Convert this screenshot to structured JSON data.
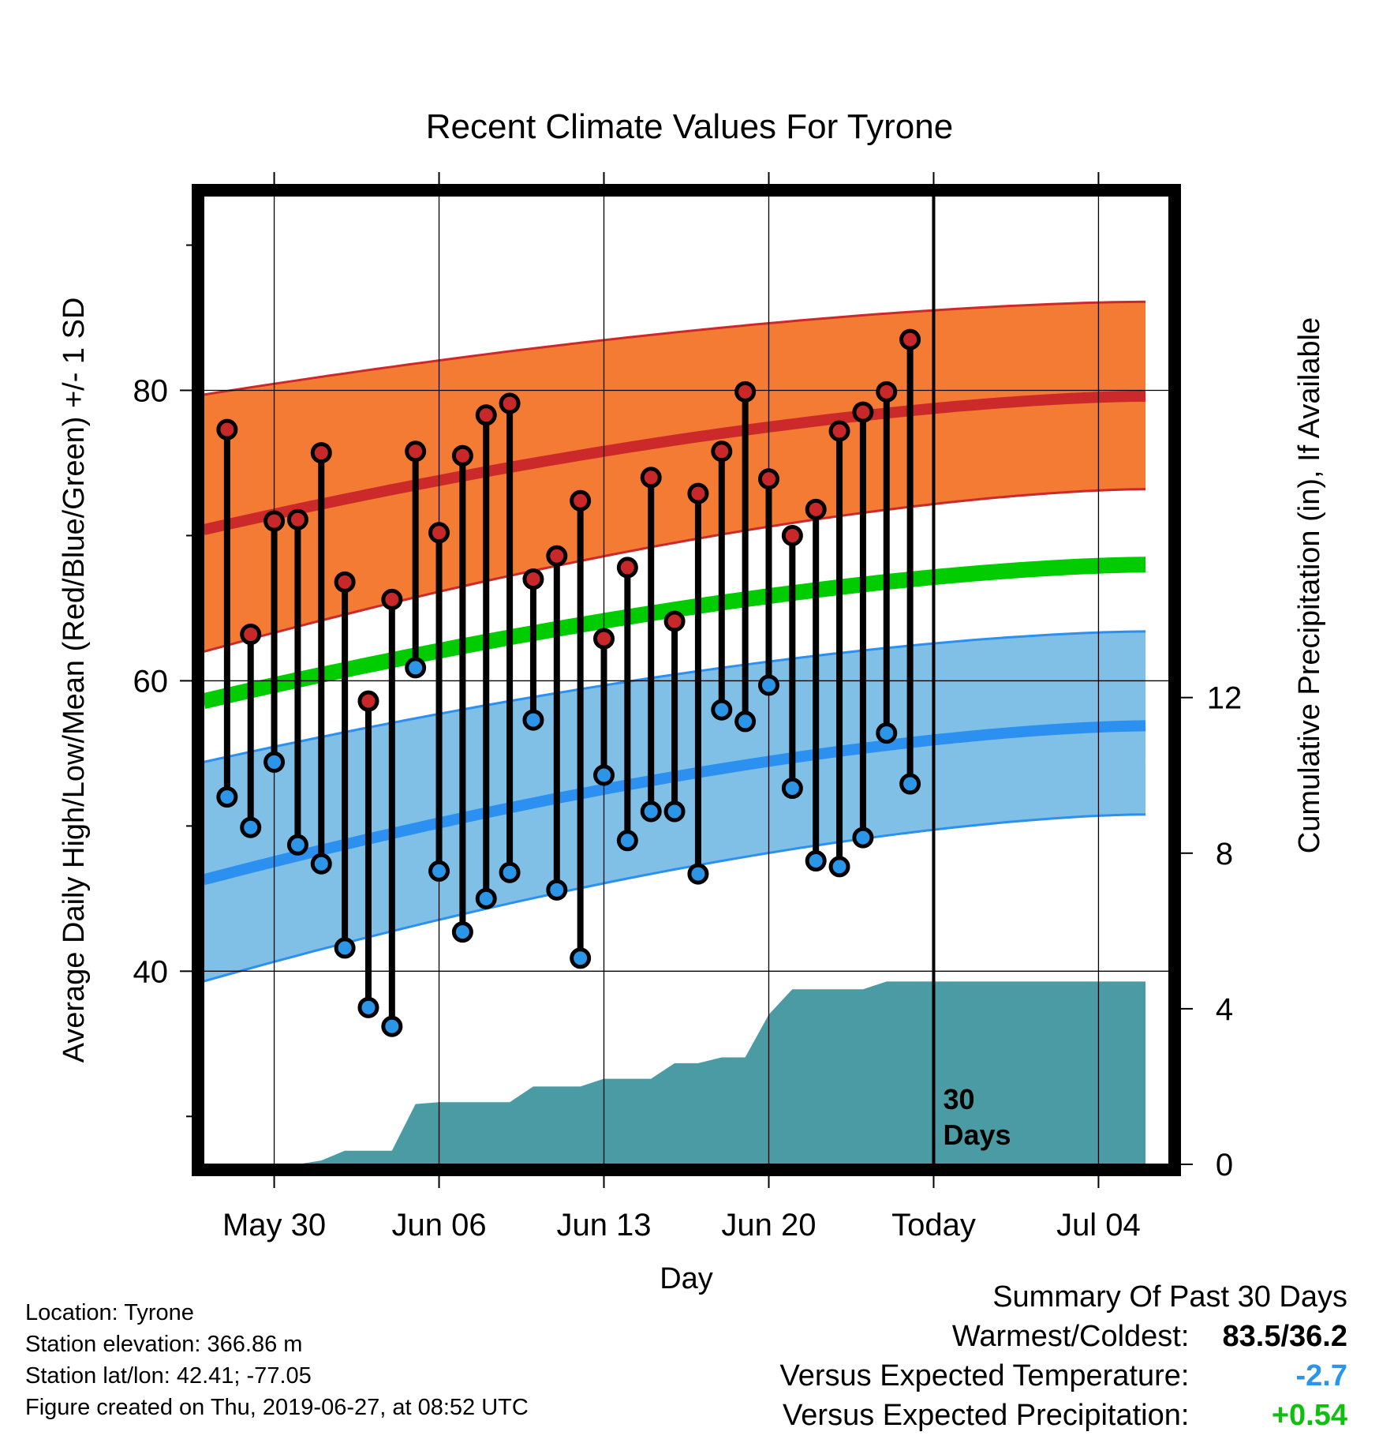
{
  "chart_data": {
    "type": "climate-range",
    "title": "Recent Climate Values For Tyrone",
    "xlabel": "Day",
    "ylabel_left": "Average Daily High/Low/Mean (Red/Blue/Green) +/- 1 SD",
    "ylabel_right": "Cumulative Precipitation (in), If Available",
    "x_tick_labels": [
      "May 30",
      "Jun 06",
      "Jun 13",
      "Jun 20",
      "Today",
      "Jul 04"
    ],
    "x_tick_days": [
      2,
      9,
      16,
      23,
      30,
      37
    ],
    "x_range_days": [
      -1,
      40
    ],
    "y_left_ticks": [
      40,
      60,
      80
    ],
    "y_left_range": [
      26.7,
      93.4
    ],
    "y_right_ticks": [
      0,
      4,
      8,
      12
    ],
    "y_right_range": [
      0,
      24.9
    ],
    "today_label": "30\nDays",
    "days": [
      0,
      1,
      2,
      3,
      4,
      5,
      6,
      7,
      8,
      9,
      10,
      11,
      12,
      13,
      14,
      15,
      16,
      17,
      18,
      19,
      20,
      21,
      22,
      23,
      24,
      25,
      26,
      27,
      28,
      29
    ],
    "highs": [
      77.3,
      63.2,
      71.0,
      71.1,
      75.7,
      66.8,
      58.6,
      65.6,
      75.8,
      70.2,
      75.5,
      78.3,
      79.1,
      67.0,
      68.6,
      72.4,
      62.9,
      67.8,
      74.0,
      64.1,
      72.9,
      75.8,
      79.9,
      73.9,
      70.0,
      71.8,
      77.2,
      78.5,
      79.9,
      83.5
    ],
    "lows": [
      52.0,
      49.9,
      54.4,
      48.7,
      47.4,
      41.6,
      37.5,
      36.2,
      60.9,
      46.9,
      42.7,
      45.0,
      46.8,
      57.3,
      45.6,
      40.9,
      53.5,
      49.0,
      51.0,
      51.0,
      46.7,
      58.0,
      57.2,
      59.7,
      52.6,
      47.6,
      47.2,
      49.2,
      56.4,
      52.9
    ],
    "normals": {
      "day": [
        -1,
        39
      ],
      "high_mean": [
        70.4,
        79.6
      ],
      "high_upper": [
        79.7,
        86.1
      ],
      "high_lower": [
        62.0,
        73.2
      ],
      "low_mean": [
        46.3,
        56.9
      ],
      "low_upper": [
        54.4,
        63.4
      ],
      "low_lower": [
        39.3,
        50.8
      ],
      "mean": [
        58.6,
        68.0
      ]
    },
    "precip": {
      "day": [
        -1,
        3,
        4,
        5,
        7,
        8,
        9,
        11,
        12,
        13,
        15,
        16,
        18,
        19,
        20,
        21,
        22,
        23,
        24,
        24.5,
        25,
        27,
        28,
        29,
        39
      ],
      "cumulative": [
        0,
        0,
        0.1,
        0.35,
        0.35,
        1.55,
        1.6,
        1.6,
        1.6,
        2.0,
        2.0,
        2.2,
        2.2,
        2.6,
        2.6,
        2.75,
        2.75,
        3.85,
        4.5,
        4.5,
        4.5,
        4.5,
        4.7,
        4.7,
        4.7
      ]
    },
    "colors": {
      "high_band": "#f47b34",
      "high_line": "#cc2a2a",
      "low_band": "#80bfe6",
      "low_line": "#2b90f0",
      "mean_line": "#00cc00",
      "precip": "#4a9ba3",
      "high_marker": "#c8282a",
      "low_marker": "#2b95e8"
    }
  },
  "footer": {
    "location": "Location: Tyrone",
    "elevation": "Station elevation: 366.86 m",
    "latlon": "Station lat/lon: 42.41; -77.05",
    "created": "Figure created on Thu, 2019-06-27, at 08:52 UTC"
  },
  "summary": {
    "heading": "Summary Of Past 30 Days",
    "warm_cold_label": "Warmest/Coldest:",
    "warm_cold_value": "83.5/36.2",
    "temp_label": "Versus Expected Temperature:",
    "temp_value": "-2.7",
    "temp_color": "#2b95e8",
    "precip_label": "Versus Expected Precipitation:",
    "precip_value": "+0.54",
    "precip_color": "#10c010"
  }
}
